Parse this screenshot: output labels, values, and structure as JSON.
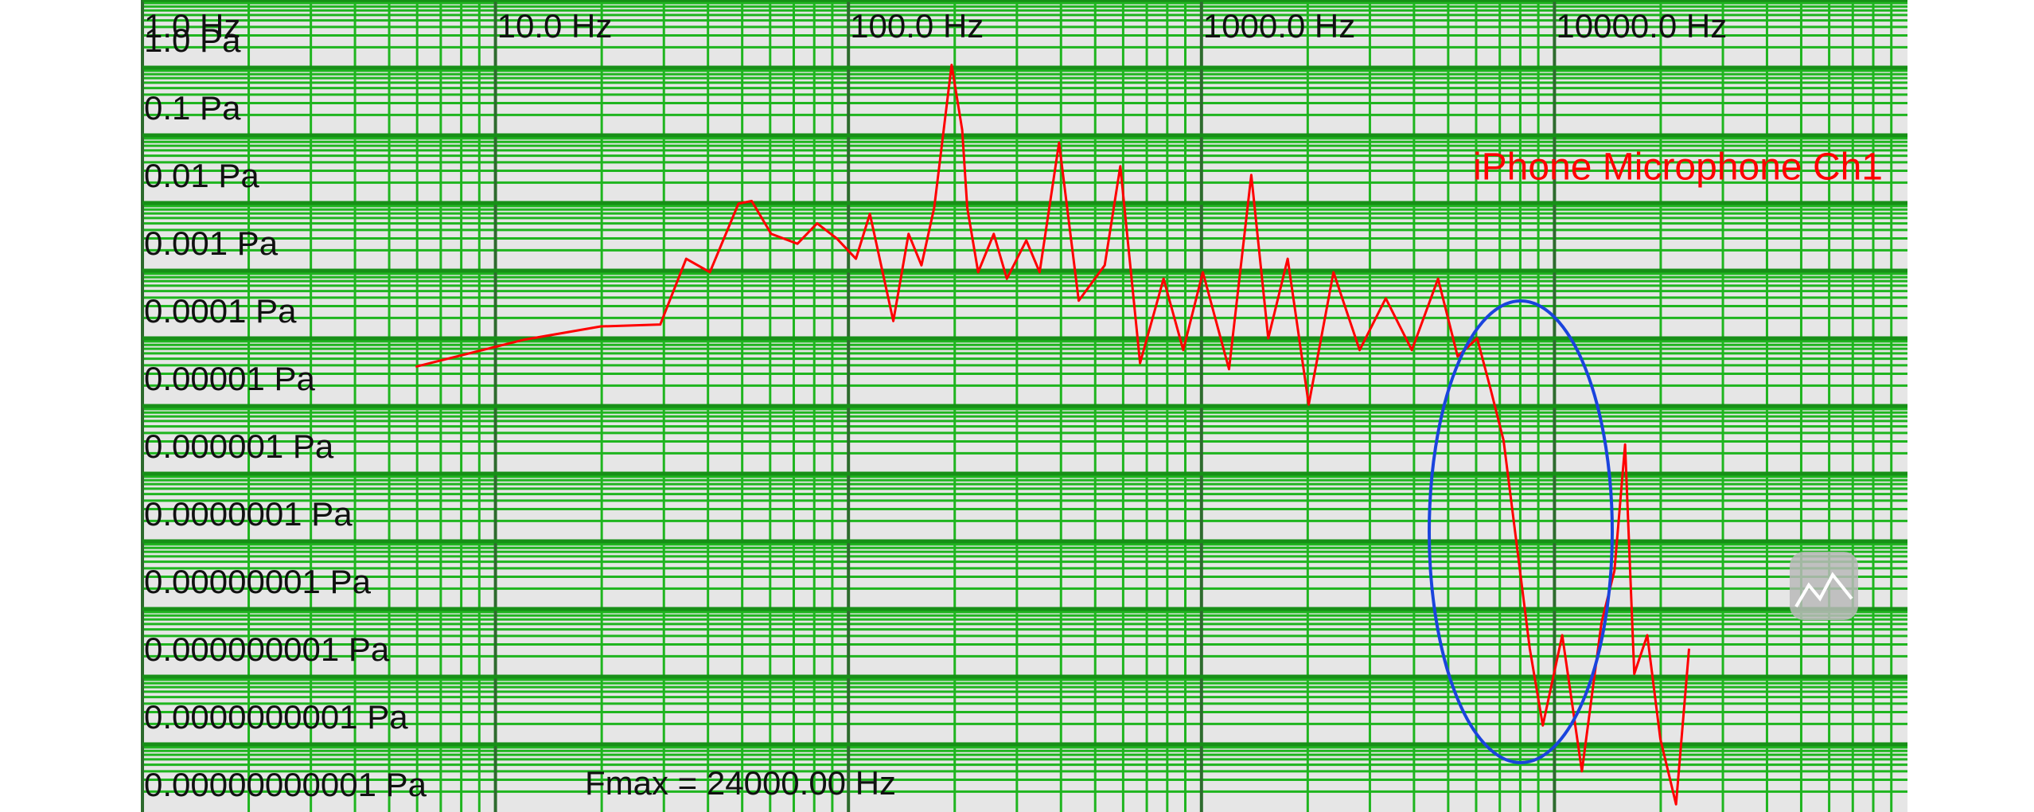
{
  "chart_data": {
    "type": "line",
    "x": [
      5.94,
      12.0,
      19.9,
      29.3,
      34.7,
      40.5,
      48.8,
      53.2,
      60.4,
      71.7,
      81.5,
      92.6,
      105,
      115,
      134,
      148,
      161,
      175,
      196,
      210,
      217,
      233,
      258,
      281,
      319,
      348,
      395,
      449,
      532,
      589,
      670,
      781,
      888,
      1009,
      1197,
      1384,
      1546,
      1755,
      2013,
      2366,
      2806,
      3327,
      3945,
      4680,
      5318,
      6040,
      6588,
      7175,
      7816,
      8512,
      9268,
      10520,
      11960,
      13590,
      14790,
      15850,
      16830,
      18320,
      19950,
      22100,
      24060
    ],
    "series": [
      {
        "name": "iPhone Microphone Ch1",
        "color": "#ff0000",
        "values": [
          3.8e-06,
          9.5e-06,
          1.5e-05,
          1.6e-05,
          0.00015,
          9.5e-05,
          0.00098,
          0.00107,
          0.00035,
          0.00025,
          0.0005,
          0.0003,
          0.00015,
          0.00069,
          1.8e-05,
          0.00035,
          0.00012,
          0.00086,
          0.11,
          0.012,
          0.00086,
          9.5e-05,
          0.00035,
          7.6e-05,
          0.00028,
          9.5e-05,
          0.0078,
          3.6e-05,
          0.00012,
          0.0035,
          4.3e-06,
          7.6e-05,
          6.7e-06,
          9.5e-05,
          3.5e-06,
          0.0026,
          1e-05,
          0.00015,
          1.05e-06,
          9.5e-05,
          6.7e-06,
          3.9e-05,
          6.7e-06,
          7.6e-05,
          5.4e-06,
          1e-05,
          1.8e-06,
          3.1e-07,
          9e-09,
          2.6e-10,
          1.9e-11,
          4.1e-10,
          4e-12,
          6.3e-10,
          3.7e-09,
          2.7e-07,
          1.1e-10,
          4.1e-10,
          1.2e-11,
          1.3e-12,
          2.6e-10
        ]
      }
    ],
    "xlim": [
      1,
      100000
    ],
    "ylim": [
      1e-12,
      1
    ],
    "xlog": true,
    "ylog": true,
    "grid": true,
    "xticks": [
      {
        "value": 1,
        "label": "1.0 Hz"
      },
      {
        "value": 10,
        "label": "10.0 Hz"
      },
      {
        "value": 100,
        "label": "100.0 Hz"
      },
      {
        "value": 1000,
        "label": "1000.0 Hz"
      },
      {
        "value": 10000,
        "label": "10000.0 Hz"
      }
    ],
    "yticks": [
      {
        "value": 1,
        "label": "1.0 Pa"
      },
      {
        "value": 0.1,
        "label": "0.1 Pa"
      },
      {
        "value": 0.01,
        "label": "0.01 Pa"
      },
      {
        "value": 0.001,
        "label": "0.001 Pa"
      },
      {
        "value": 0.0001,
        "label": "0.0001 Pa"
      },
      {
        "value": 1e-05,
        "label": "0.00001 Pa"
      },
      {
        "value": 1e-06,
        "label": "0.000001 Pa"
      },
      {
        "value": 1e-07,
        "label": "0.0000001 Pa"
      },
      {
        "value": 1e-08,
        "label": "0.00000001 Pa"
      },
      {
        "value": 1e-09,
        "label": "0.000000001 Pa"
      },
      {
        "value": 1e-10,
        "label": "0.0000000001 Pa"
      },
      {
        "value": 1e-11,
        "label": "0.00000000001 Pa"
      }
    ],
    "annotations": [
      {
        "text": "Fmax = 24000.00 Hz"
      }
    ]
  }
}
